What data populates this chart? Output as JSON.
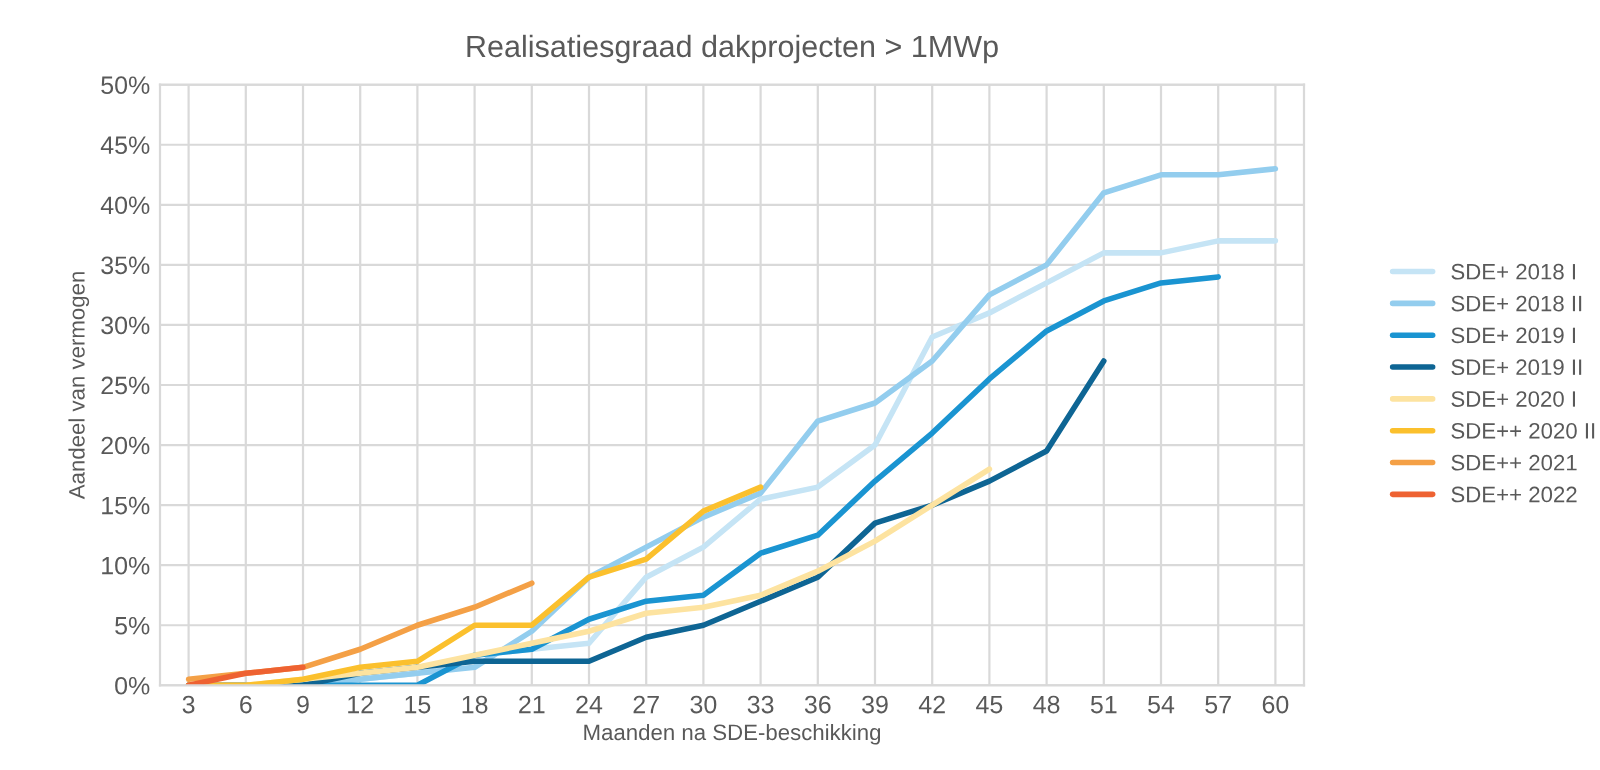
{
  "chart_data": {
    "type": "line",
    "title": "Realisatiesgraad dakprojecten > 1MWp",
    "xlabel": "Maanden na SDE-beschikking",
    "ylabel": "Aandeel van vermogen",
    "categories": [
      "3",
      "6",
      "9",
      "12",
      "15",
      "18",
      "21",
      "24",
      "27",
      "30",
      "33",
      "36",
      "39",
      "42",
      "45",
      "48",
      "51",
      "54",
      "57",
      "60"
    ],
    "ylim": [
      0,
      50
    ],
    "yticks": [
      {
        "value": 0,
        "label": "0%"
      },
      {
        "value": 5,
        "label": "5%"
      },
      {
        "value": 10,
        "label": "10%"
      },
      {
        "value": 15,
        "label": "15%"
      },
      {
        "value": 20,
        "label": "20%"
      },
      {
        "value": 25,
        "label": "25%"
      },
      {
        "value": 30,
        "label": "30%"
      },
      {
        "value": 35,
        "label": "35%"
      },
      {
        "value": 40,
        "label": "40%"
      },
      {
        "value": 45,
        "label": "45%"
      },
      {
        "value": 50,
        "label": "50%"
      }
    ],
    "grid": true,
    "legend": "right",
    "marker": "none",
    "line_style": "solid",
    "series": [
      {
        "name": "SDE+ 2018 I",
        "color": "#c5e4f5",
        "values": [
          0,
          0,
          0,
          0.5,
          1,
          2.5,
          3,
          3.5,
          9,
          11.5,
          15.5,
          16.5,
          20,
          29,
          31,
          33.5,
          36,
          36,
          37,
          37
        ]
      },
      {
        "name": "SDE+ 2018 II",
        "color": "#93cdee",
        "values": [
          0,
          0,
          0,
          0.5,
          1,
          1.5,
          4.5,
          9,
          11.5,
          14,
          16,
          22,
          23.5,
          27,
          32.5,
          35,
          41,
          42.5,
          42.5,
          43
        ]
      },
      {
        "name": "SDE+ 2019 I",
        "color": "#1a94d1",
        "values": [
          0,
          0,
          0,
          0,
          0,
          2.5,
          3,
          5.5,
          7,
          7.5,
          11,
          12.5,
          17,
          21,
          25.5,
          29.5,
          32,
          33.5,
          34,
          null
        ]
      },
      {
        "name": "SDE+ 2019 II",
        "color": "#0e6594",
        "values": [
          0,
          0,
          0,
          1,
          1.5,
          2,
          2,
          2,
          4,
          5,
          7,
          9,
          13.5,
          15,
          17,
          19.5,
          27,
          null,
          null,
          null
        ]
      },
      {
        "name": "SDE+ 2020 I",
        "color": "#fde3a0",
        "values": [
          0,
          0,
          0.5,
          1,
          1.5,
          2.5,
          3.5,
          4.5,
          6,
          6.5,
          7.5,
          9.5,
          12,
          15,
          18,
          null,
          null,
          null,
          null,
          null
        ]
      },
      {
        "name": "SDE++ 2020 II",
        "color": "#fbc02d",
        "values": [
          0,
          0,
          0.5,
          1.5,
          2,
          5,
          5,
          9,
          10.5,
          14.5,
          16.5,
          null,
          null,
          null,
          null,
          null,
          null,
          null,
          null,
          null
        ]
      },
      {
        "name": "SDE++ 2021",
        "color": "#f4a046",
        "values": [
          0.5,
          1,
          1.5,
          3,
          5,
          6.5,
          8.5,
          null,
          null,
          null,
          null,
          null,
          null,
          null,
          null,
          null,
          null,
          null,
          null,
          null
        ]
      },
      {
        "name": "SDE++ 2022",
        "color": "#ee6232",
        "values": [
          0,
          1,
          1.5,
          null,
          null,
          null,
          null,
          null,
          null,
          null,
          null,
          null,
          null,
          null,
          null,
          null,
          null,
          null,
          null,
          null
        ]
      }
    ]
  }
}
